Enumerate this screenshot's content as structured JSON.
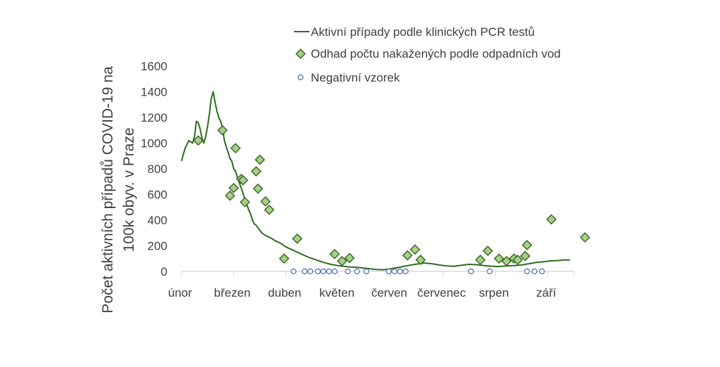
{
  "chart_data": {
    "type": "line",
    "ylabel_line1": "Počet aktivních případů COVID-19 na",
    "ylabel_line2": "100k obyv. v Praze",
    "ylim": [
      0,
      1600
    ],
    "yticks": [
      "0",
      "200",
      "400",
      "600",
      "800",
      "1000",
      "1200",
      "1400",
      "1600"
    ],
    "xlim": [
      0,
      210
    ],
    "months": [
      {
        "label": "únor",
        "x": 0
      },
      {
        "label": "březen",
        "x": 28
      },
      {
        "label": "duben",
        "x": 56
      },
      {
        "label": "květen",
        "x": 84
      },
      {
        "label": "červen",
        "x": 112
      },
      {
        "label": "červenec",
        "x": 140
      },
      {
        "label": "srpen",
        "x": 168
      },
      {
        "label": "září",
        "x": 196
      }
    ],
    "legend": {
      "position": "top-right",
      "line_label": "Aktivní případy podle klinických PCR testů",
      "diamond_label": "Odhad počtu nakažených podle odpadních vod",
      "circle_label": "Negativní vzorek"
    },
    "colors": {
      "line": "#2f6b1f",
      "diamond_fill": "#a9cf8a",
      "diamond_stroke": "#3a6b24",
      "circle_stroke": "#4a6fb0",
      "text": "#404040",
      "axis": "#d9d9d9"
    },
    "series": [
      {
        "name": "Aktivní případy podle klinických PCR testů",
        "kind": "line",
        "points": [
          [
            0,
            860
          ],
          [
            2,
            960
          ],
          [
            4,
            1020
          ],
          [
            6,
            1000
          ],
          [
            7,
            1050
          ],
          [
            8,
            1170
          ],
          [
            9,
            1160
          ],
          [
            10,
            1110
          ],
          [
            11,
            1040
          ],
          [
            12,
            1000
          ],
          [
            13,
            1050
          ],
          [
            14,
            1130
          ],
          [
            15,
            1230
          ],
          [
            16,
            1350
          ],
          [
            17,
            1400
          ],
          [
            18,
            1320
          ],
          [
            19,
            1250
          ],
          [
            20,
            1200
          ],
          [
            21,
            1170
          ],
          [
            22,
            1120
          ],
          [
            23,
            1020
          ],
          [
            24,
            970
          ],
          [
            25,
            930
          ],
          [
            26,
            880
          ],
          [
            27,
            860
          ],
          [
            28,
            800
          ],
          [
            29,
            780
          ],
          [
            30,
            730
          ],
          [
            31,
            690
          ],
          [
            32,
            650
          ],
          [
            33,
            610
          ],
          [
            34,
            560
          ],
          [
            35,
            520
          ],
          [
            36,
            480
          ],
          [
            37,
            450
          ],
          [
            38,
            400
          ],
          [
            39,
            370
          ],
          [
            40,
            360
          ],
          [
            41,
            340
          ],
          [
            42,
            320
          ],
          [
            43,
            300
          ],
          [
            45,
            280
          ],
          [
            48,
            260
          ],
          [
            50,
            240
          ],
          [
            53,
            220
          ],
          [
            56,
            190
          ],
          [
            59,
            170
          ],
          [
            62,
            150
          ],
          [
            65,
            130
          ],
          [
            68,
            110
          ],
          [
            72,
            90
          ],
          [
            76,
            70
          ],
          [
            80,
            55
          ],
          [
            85,
            42
          ],
          [
            90,
            35
          ],
          [
            95,
            30
          ],
          [
            100,
            22
          ],
          [
            104,
            15
          ],
          [
            108,
            12
          ],
          [
            112,
            20
          ],
          [
            116,
            30
          ],
          [
            120,
            42
          ],
          [
            125,
            55
          ],
          [
            130,
            65
          ],
          [
            134,
            60
          ],
          [
            138,
            50
          ],
          [
            142,
            42
          ],
          [
            146,
            40
          ],
          [
            150,
            48
          ],
          [
            154,
            55
          ],
          [
            158,
            52
          ],
          [
            162,
            45
          ],
          [
            166,
            40
          ],
          [
            170,
            38
          ],
          [
            174,
            42
          ],
          [
            178,
            45
          ],
          [
            182,
            50
          ],
          [
            186,
            60
          ],
          [
            190,
            70
          ],
          [
            194,
            75
          ],
          [
            198,
            82
          ],
          [
            202,
            85
          ],
          [
            205,
            90
          ],
          [
            208,
            88
          ]
        ]
      },
      {
        "name": "Odhad počtu nakažených podle odpadních vod",
        "kind": "diamond",
        "points": [
          [
            9,
            1020
          ],
          [
            22,
            1100
          ],
          [
            26,
            590
          ],
          [
            28,
            650
          ],
          [
            29,
            960
          ],
          [
            32,
            720
          ],
          [
            33,
            710
          ],
          [
            34,
            540
          ],
          [
            40,
            780
          ],
          [
            41,
            645
          ],
          [
            42,
            870
          ],
          [
            45,
            545
          ],
          [
            47,
            480
          ],
          [
            55,
            100
          ],
          [
            62,
            255
          ],
          [
            82,
            135
          ],
          [
            86,
            80
          ],
          [
            90,
            105
          ],
          [
            121,
            125
          ],
          [
            125,
            170
          ],
          [
            128,
            90
          ],
          [
            160,
            90
          ],
          [
            164,
            160
          ],
          [
            170,
            100
          ],
          [
            174,
            80
          ],
          [
            178,
            100
          ],
          [
            180,
            90
          ],
          [
            184,
            120
          ],
          [
            185,
            205
          ],
          [
            198,
            405
          ],
          [
            216,
            265
          ]
        ]
      },
      {
        "name": "Negativní vzorek",
        "kind": "circle",
        "points": [
          [
            60,
            0
          ],
          [
            66,
            0
          ],
          [
            69,
            0
          ],
          [
            73,
            0
          ],
          [
            76,
            0
          ],
          [
            79,
            0
          ],
          [
            82,
            0
          ],
          [
            89,
            0
          ],
          [
            94,
            0
          ],
          [
            99,
            0
          ],
          [
            111,
            0
          ],
          [
            114,
            0
          ],
          [
            117,
            0
          ],
          [
            120,
            0
          ],
          [
            155,
            0
          ],
          [
            165,
            0
          ],
          [
            185,
            0
          ],
          [
            189,
            0
          ],
          [
            193,
            0
          ]
        ]
      }
    ]
  }
}
